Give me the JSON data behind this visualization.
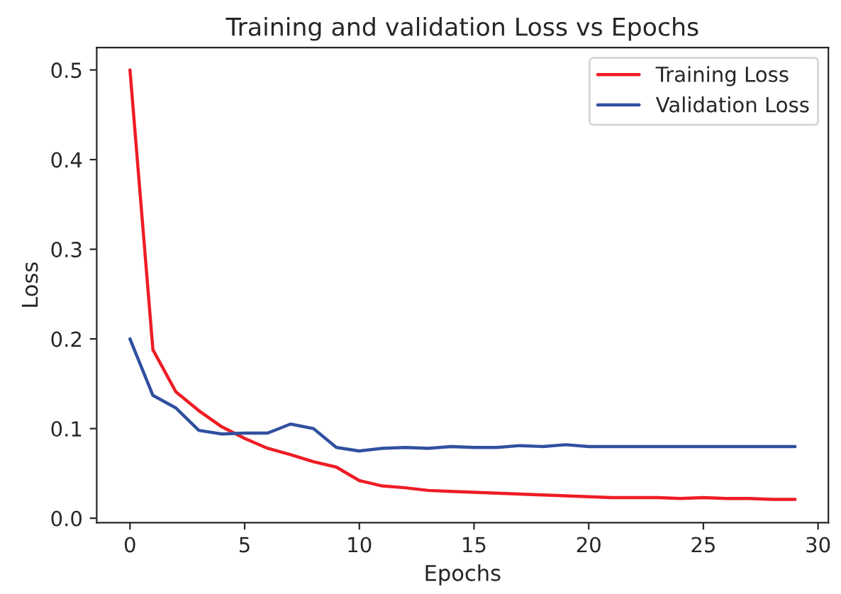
{
  "chart_data": {
    "type": "line",
    "title": "Training and validation Loss vs Epochs",
    "xlabel": "Epochs",
    "ylabel": "Loss",
    "x": [
      0,
      1,
      2,
      3,
      4,
      5,
      6,
      7,
      8,
      9,
      10,
      11,
      12,
      13,
      14,
      15,
      16,
      17,
      18,
      19,
      20,
      21,
      22,
      23,
      24,
      25,
      26,
      27,
      28,
      29
    ],
    "series": [
      {
        "name": "Training Loss",
        "color": "#ee1c25",
        "values": [
          0.5,
          0.188,
          0.141,
          0.12,
          0.102,
          0.089,
          0.078,
          0.071,
          0.063,
          0.057,
          0.042,
          0.036,
          0.034,
          0.031,
          0.03,
          0.029,
          0.028,
          0.027,
          0.026,
          0.025,
          0.024,
          0.023,
          0.023,
          0.023,
          0.022,
          0.023,
          0.022,
          0.022,
          0.021,
          0.021
        ]
      },
      {
        "name": "Validation Loss",
        "color": "#3050a0",
        "values": [
          0.2,
          0.137,
          0.123,
          0.098,
          0.094,
          0.095,
          0.095,
          0.105,
          0.1,
          0.079,
          0.075,
          0.078,
          0.079,
          0.078,
          0.08,
          0.079,
          0.079,
          0.081,
          0.08,
          0.082,
          0.08,
          0.08,
          0.08,
          0.08,
          0.08,
          0.08,
          0.08,
          0.08,
          0.08,
          0.08
        ]
      }
    ],
    "xlim": [
      -1.45,
      30.45
    ],
    "xticks": [
      0,
      5,
      10,
      15,
      20,
      25,
      30
    ],
    "ylim": [
      -0.005,
      0.525
    ],
    "yticks": [
      {
        "value": 0,
        "label": "0.0"
      },
      0.1,
      0.2,
      0.3,
      0.4,
      0.5
    ],
    "grid": false,
    "legend": "top right",
    "line_style": "solid",
    "marker": "none"
  }
}
